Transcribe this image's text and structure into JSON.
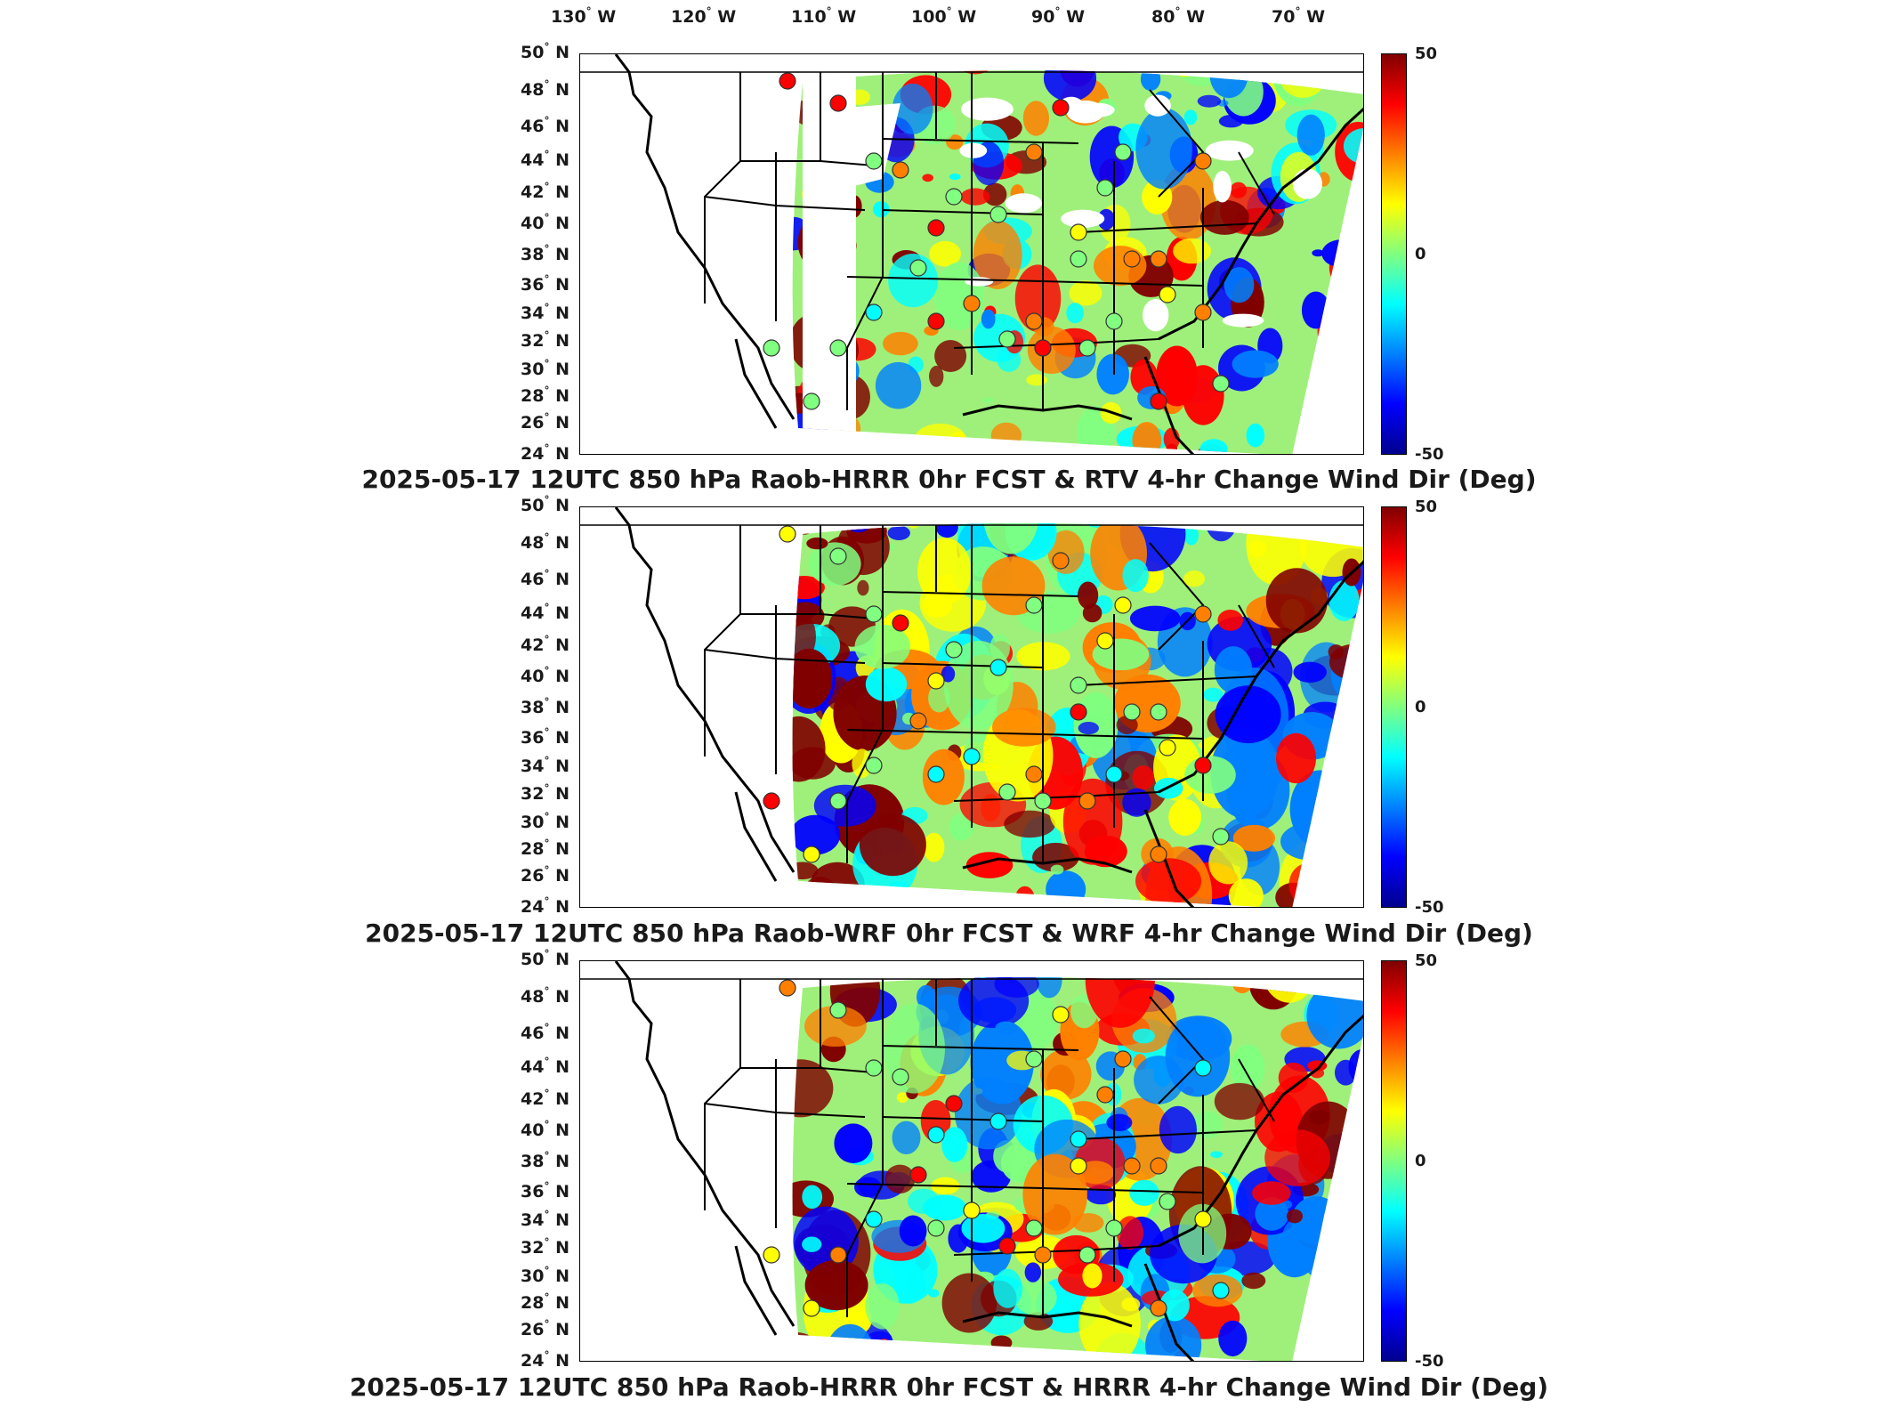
{
  "lon_labels": [
    "130",
    "120",
    "110",
    "100",
    "90",
    "80",
    "70"
  ],
  "lon_hemisphere": "W",
  "lat_labels": [
    "50",
    "48",
    "46",
    "44",
    "42",
    "40",
    "38",
    "36",
    "34",
    "32",
    "30",
    "28",
    "26",
    "24"
  ],
  "lat_hemisphere": "N",
  "degree_symbol": "°",
  "colorbar": {
    "max_label": "50",
    "mid_label": "0",
    "min_label": "-50",
    "range": [
      -50,
      50
    ],
    "colormap": "jet"
  },
  "panels": [
    {
      "title": "2025-05-17 12UTC 850 hPa Raob-HRRR 0hr FCST & RTV 4-hr Change Wind Dir (Deg)"
    },
    {
      "title": "2025-05-17 12UTC 850 hPa Raob-WRF 0hr FCST & WRF 4-hr Change Wind Dir (Deg)"
    },
    {
      "title": "2025-05-17 12UTC 850 hPa Raob-HRRR 0hr FCST & HRRR 4-hr Change Wind Dir (Deg)"
    }
  ],
  "colors": {
    "background": "#ffffff",
    "boundaries": "#000000",
    "text": "#1a1a1a"
  }
}
